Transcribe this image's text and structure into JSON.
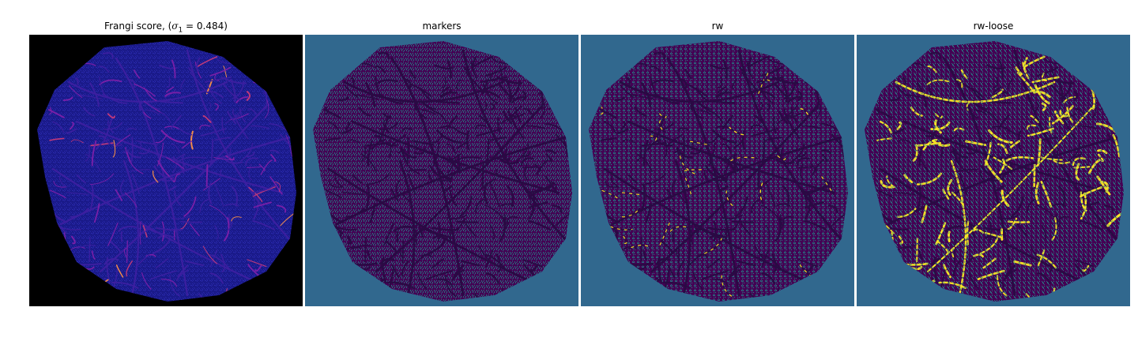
{
  "figure": {
    "panels": [
      {
        "title": "Frangi score, (σ₁ = 0.484)",
        "colormap": "plasma",
        "background_color": "#000000",
        "tissue_base_color": "#1a1a8a",
        "vessel_colors": [
          "#3b1fa0",
          "#7a1fa8",
          "#c0397a",
          "#f08a4a"
        ]
      },
      {
        "title": "markers",
        "colormap": "viridis",
        "background_color": "#31688e",
        "tissue_base_color": "#440154",
        "marker_color": "#21918c"
      },
      {
        "title": "rw",
        "colormap": "viridis",
        "background_color": "#31688e",
        "tissue_base_color": "#440154",
        "marker_color": "#21918c",
        "highlight_color": "#fde725"
      },
      {
        "title": "rw-loose",
        "colormap": "viridis",
        "background_color": "#31688e",
        "tissue_base_color": "#440154",
        "marker_color": "#21918c",
        "highlight_color": "#fde725"
      }
    ]
  }
}
